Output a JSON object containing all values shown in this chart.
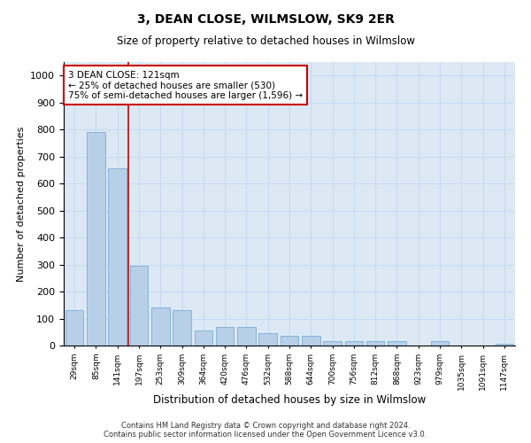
{
  "title": "3, DEAN CLOSE, WILMSLOW, SK9 2ER",
  "subtitle": "Size of property relative to detached houses in Wilmslow",
  "xlabel": "Distribution of detached houses by size in Wilmslow",
  "ylabel": "Number of detached properties",
  "categories": [
    "29sqm",
    "85sqm",
    "141sqm",
    "197sqm",
    "253sqm",
    "309sqm",
    "364sqm",
    "420sqm",
    "476sqm",
    "532sqm",
    "588sqm",
    "644sqm",
    "700sqm",
    "756sqm",
    "812sqm",
    "868sqm",
    "923sqm",
    "979sqm",
    "1035sqm",
    "1091sqm",
    "1147sqm"
  ],
  "values": [
    130,
    790,
    655,
    295,
    140,
    130,
    55,
    70,
    70,
    45,
    35,
    35,
    15,
    15,
    15,
    15,
    0,
    15,
    0,
    0,
    5
  ],
  "bar_color": "#b8cfe8",
  "bar_edge_color": "#7aadd4",
  "grid_color": "#c8daf0",
  "background_color": "#dce9f5",
  "vline_x": 2.5,
  "vline_color": "#cc0000",
  "annotation_text": "3 DEAN CLOSE: 121sqm\n← 25% of detached houses are smaller (530)\n75% of semi-detached houses are larger (1,596) →",
  "annotation_box_color": "#ffffff",
  "annotation_box_edge": "#cc0000",
  "ylim": [
    0,
    1050
  ],
  "yticks": [
    0,
    100,
    200,
    300,
    400,
    500,
    600,
    700,
    800,
    900,
    1000
  ],
  "footer": "Contains HM Land Registry data © Crown copyright and database right 2024.\nContains public sector information licensed under the Open Government Licence v3.0."
}
